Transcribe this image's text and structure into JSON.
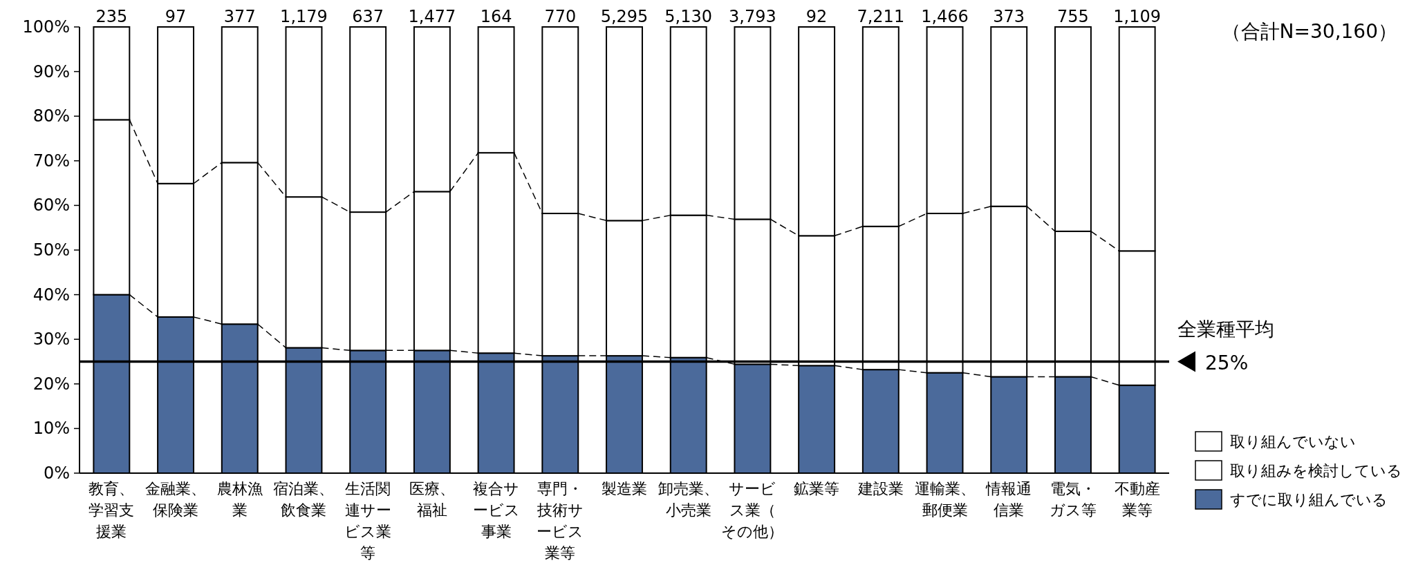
{
  "chart_data": {
    "type": "bar",
    "stacked": true,
    "categories": [
      "教育、学習支援業",
      "金融業、保険業",
      "農林漁業",
      "宿泊業、飲食業",
      "生活関連サービス業等",
      "医療、福祉",
      "複合サービス事業",
      "専門・技術サービス業等",
      "製造業",
      "卸売業、小売業",
      "サービス業（その他）",
      "鉱業等",
      "建設業",
      "運輸業、郵便業",
      "情報通信業",
      "電気・ガス等",
      "不動産業等"
    ],
    "series": [
      {
        "name": "すでに取り組んでいる",
        "color": "#4b6a9b",
        "values": [
          40.0,
          35.0,
          33.4,
          28.1,
          27.5,
          27.5,
          26.9,
          26.3,
          26.3,
          25.9,
          24.4,
          24.1,
          23.2,
          22.5,
          21.6,
          21.6,
          19.7
        ]
      },
      {
        "name": "取り組みを検討している",
        "color": "#ffffff",
        "values": [
          39.2,
          29.9,
          36.2,
          33.8,
          31.0,
          35.6,
          44.9,
          31.9,
          30.3,
          31.9,
          32.5,
          29.1,
          32.1,
          35.7,
          38.2,
          32.6,
          30.1
        ]
      },
      {
        "name": "取り組んでいない",
        "color": "#ffffff",
        "values": [
          20.8,
          35.1,
          30.4,
          38.1,
          41.5,
          36.9,
          28.2,
          41.8,
          43.4,
          42.2,
          43.1,
          46.8,
          44.7,
          41.8,
          40.2,
          45.8,
          50.2
        ]
      }
    ],
    "ylim": [
      0,
      100
    ],
    "yticks": [
      {
        "value": 0,
        "label": "0%"
      },
      {
        "value": 10,
        "label": "10%"
      },
      {
        "value": 20,
        "label": "20%"
      },
      {
        "value": 30,
        "label": "30%"
      },
      {
        "value": 40,
        "label": "40%"
      },
      {
        "value": 50,
        "label": "50%"
      },
      {
        "value": 60,
        "label": "60%"
      },
      {
        "value": 70,
        "label": "70%"
      },
      {
        "value": 80,
        "label": "80%"
      },
      {
        "value": 90,
        "label": "90%"
      },
      {
        "value": 100,
        "label": "100%"
      }
    ],
    "ref_lines": [
      {
        "axis": "y",
        "value": 25,
        "label": "全業種平均\n25%",
        "color": "#000000"
      }
    ],
    "line_style": "dashed",
    "legend": "right",
    "grid": false,
    "annotations": [
      "（合計N=30,160）",
      {
        "text": "235",
        "x": "教育、学習支援業",
        "y": 100
      },
      {
        "text": "97",
        "x": "金融業、保険業",
        "y": 100
      },
      {
        "text": "377",
        "x": "農林漁業",
        "y": 100
      },
      {
        "text": "1,179",
        "x": "宿泊業、飲食業",
        "y": 100
      },
      {
        "text": "637",
        "x": "生活関連サービス業等",
        "y": 100
      },
      {
        "text": "1,477",
        "x": "医療、福祉",
        "y": 100
      },
      {
        "text": "164",
        "x": "複合サービス事業",
        "y": 100
      },
      {
        "text": "770",
        "x": "専門・技術サービス業等",
        "y": 100
      },
      {
        "text": "5,295",
        "x": "製造業",
        "y": 100
      },
      {
        "text": "5,130",
        "x": "卸売業、小売業",
        "y": 100
      },
      {
        "text": "3,793",
        "x": "サービス業（その他）",
        "y": 100
      },
      {
        "text": "92",
        "x": "鉱業等",
        "y": 100
      },
      {
        "text": "7,211",
        "x": "建設業",
        "y": 100
      },
      {
        "text": "1,466",
        "x": "運輸業、郵便業",
        "y": 100
      },
      {
        "text": "373",
        "x": "情報通信業",
        "y": 100
      },
      {
        "text": "755",
        "x": "電気・ガス等",
        "y": 100
      },
      {
        "text": "1,109",
        "x": "不動産業等",
        "y": 100
      }
    ]
  }
}
